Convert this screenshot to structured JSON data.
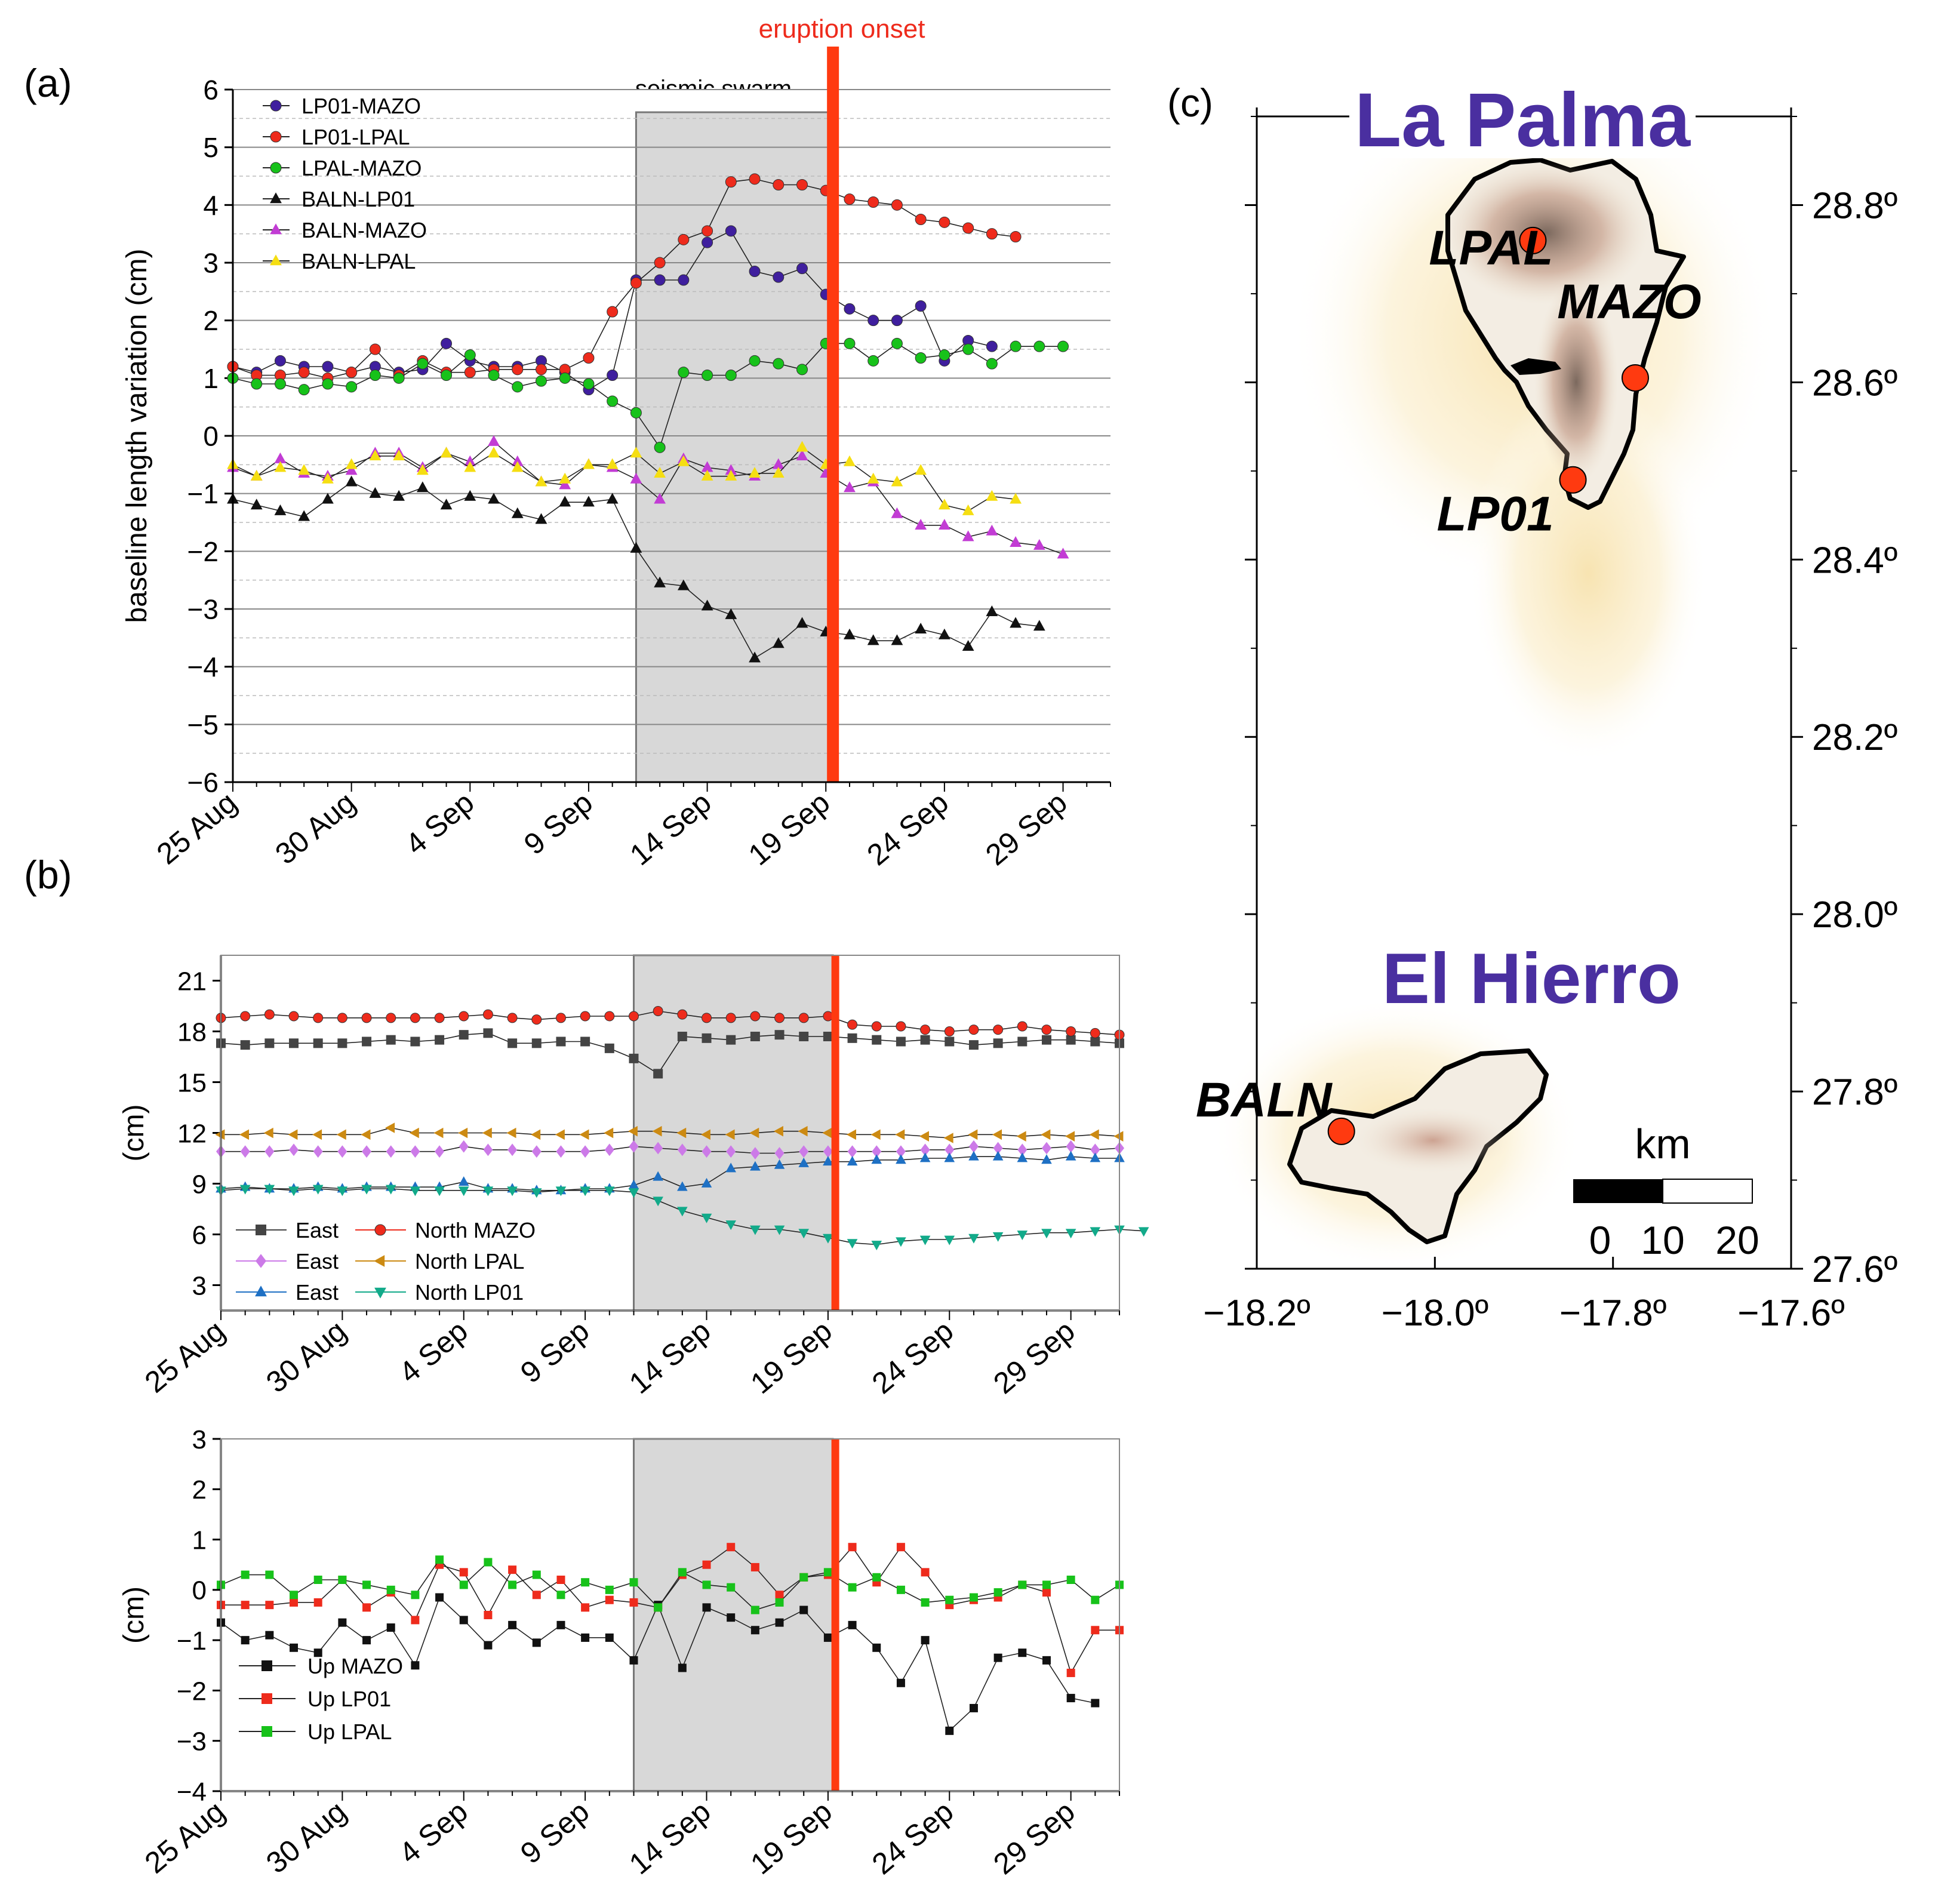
{
  "colors": {
    "purple": "#3f1f9e",
    "red": "#ee2b1c",
    "green": "#17c21a",
    "black": "#111111",
    "magenta": "#c23cd4",
    "yellow": "#f5de12",
    "gray": "#444444",
    "violet": "#cc7ae8",
    "blue": "#1e70c4",
    "orange": "#cc8a12",
    "teal": "#12aa8a",
    "eruption": "#ff3a10",
    "swarm": "#d8d8d8",
    "map_title": "#4a2fa0"
  },
  "panel_labels": {
    "a": "(a)",
    "b": "(b)",
    "c": "(c)"
  },
  "annotations": {
    "eruption_onset": "eruption onset",
    "seismic_swarm": "seismic swarm"
  },
  "chart_data": [
    {
      "id": "a",
      "type": "line",
      "ylabel": "baseline length variation (cm)",
      "ylim": [
        -6,
        6
      ],
      "yticks": [
        "6",
        "5",
        "4",
        "3",
        "2",
        "1",
        "0",
        "−1",
        "−2",
        "−3",
        "−4",
        "−5",
        "−6"
      ],
      "xlim": [
        0,
        37
      ],
      "xtick_labels": [
        "25 Aug",
        "30 Aug",
        "4 Sep",
        "9 Sep",
        "14 Sep",
        "19 Sep",
        "24 Sep",
        "29 Sep"
      ],
      "xtick_days": [
        0,
        5,
        10,
        15,
        20,
        25,
        30,
        35
      ],
      "swarm_days": [
        17,
        25.2
      ],
      "eruption_day": 25.3,
      "series": [
        {
          "name": "LP01-MAZO",
          "color": "#3f1f9e",
          "marker": "circle",
          "values": [
            1.2,
            1.1,
            1.3,
            1.2,
            1.2,
            1.1,
            1.2,
            1.1,
            1.15,
            1.6,
            1.3,
            1.2,
            1.2,
            1.3,
            1.1,
            0.8,
            1.05,
            2.7,
            2.7,
            2.7,
            3.35,
            3.55,
            2.85,
            2.75,
            2.9,
            2.45,
            2.2,
            2.0,
            2.0,
            2.25,
            1.3,
            1.65,
            1.55
          ]
        },
        {
          "name": "LP01-LPAL",
          "color": "#ee2b1c",
          "marker": "circle",
          "values": [
            1.2,
            1.05,
            1.05,
            1.1,
            1.0,
            1.1,
            1.5,
            1.05,
            1.3,
            1.1,
            1.1,
            1.15,
            1.15,
            1.15,
            1.15,
            1.35,
            2.15,
            2.65,
            3.0,
            3.4,
            3.55,
            4.4,
            4.45,
            4.35,
            4.35,
            4.25,
            4.1,
            4.05,
            4.0,
            3.75,
            3.7,
            3.6,
            3.5,
            3.45
          ]
        },
        {
          "name": "LPAL-MAZO",
          "color": "#17c21a",
          "marker": "circle",
          "values": [
            1.0,
            0.9,
            0.9,
            0.8,
            0.9,
            0.85,
            1.05,
            1.0,
            1.25,
            1.05,
            1.4,
            1.05,
            0.85,
            0.95,
            1.0,
            0.9,
            0.6,
            0.4,
            -0.2,
            1.1,
            1.05,
            1.05,
            1.3,
            1.25,
            1.15,
            1.6,
            1.6,
            1.3,
            1.6,
            1.35,
            1.4,
            1.5,
            1.25,
            1.55,
            1.55,
            1.55
          ]
        },
        {
          "name": "BALN-LP01",
          "color": "#111111",
          "marker": "triangle",
          "values": [
            -1.1,
            -1.2,
            -1.3,
            -1.4,
            -1.1,
            -0.8,
            -1.0,
            -1.05,
            -0.9,
            -1.2,
            -1.05,
            -1.1,
            -1.35,
            -1.45,
            -1.15,
            -1.15,
            -1.1,
            -1.95,
            -2.55,
            -2.6,
            -2.95,
            -3.1,
            -3.85,
            -3.6,
            -3.25,
            -3.4,
            -3.45,
            -3.55,
            -3.55,
            -3.35,
            -3.45,
            -3.65,
            -3.05,
            -3.25,
            -3.3
          ]
        },
        {
          "name": "BALN-MAZO",
          "color": "#c23cd4",
          "marker": "triangle",
          "values": [
            -0.55,
            -0.7,
            -0.4,
            -0.65,
            -0.7,
            -0.6,
            -0.3,
            -0.3,
            -0.55,
            -0.3,
            -0.45,
            -0.1,
            -0.45,
            -0.8,
            -0.85,
            -0.5,
            -0.55,
            -0.75,
            -1.1,
            -0.4,
            -0.55,
            -0.6,
            -0.7,
            -0.5,
            -0.35,
            -0.65,
            -0.9,
            -0.8,
            -1.35,
            -1.55,
            -1.55,
            -1.75,
            -1.65,
            -1.85,
            -1.9,
            -2.05
          ]
        },
        {
          "name": "BALN-LPAL",
          "color": "#f5de12",
          "marker": "triangle",
          "values": [
            -0.5,
            -0.7,
            -0.55,
            -0.6,
            -0.75,
            -0.5,
            -0.35,
            -0.35,
            -0.6,
            -0.3,
            -0.55,
            -0.3,
            -0.55,
            -0.8,
            -0.75,
            -0.5,
            -0.5,
            -0.3,
            -0.65,
            -0.45,
            -0.7,
            -0.7,
            -0.65,
            -0.65,
            -0.2,
            -0.5,
            -0.45,
            -0.75,
            -0.8,
            -0.6,
            -1.2,
            -1.3,
            -1.05,
            -1.1
          ]
        }
      ]
    },
    {
      "id": "b1",
      "type": "line",
      "ylabel": "(cm)",
      "ylim": [
        1.5,
        22.5
      ],
      "yticks": [
        "21",
        "18",
        "15",
        "12",
        "9",
        "6",
        "3"
      ],
      "ytick_values": [
        21,
        18,
        15,
        12,
        9,
        6,
        3
      ],
      "xlim": [
        0,
        37
      ],
      "xtick_labels": [
        "25 Aug",
        "30 Aug",
        "4 Sep",
        "9 Sep",
        "14 Sep",
        "19 Sep",
        "24 Sep",
        "29 Sep"
      ],
      "xtick_days": [
        0,
        5,
        10,
        15,
        20,
        25,
        30,
        35
      ],
      "swarm_days": [
        17,
        25.2
      ],
      "eruption_day": 25.3,
      "legend_pairs": [
        [
          "East",
          "North MAZO"
        ],
        [
          "East",
          "North LPAL"
        ],
        [
          "East",
          "North LP01"
        ]
      ],
      "series": [
        {
          "name": "East MAZO",
          "color": "#444444",
          "marker": "square",
          "values": [
            17.3,
            17.2,
            17.3,
            17.3,
            17.3,
            17.3,
            17.4,
            17.5,
            17.4,
            17.5,
            17.8,
            17.9,
            17.3,
            17.3,
            17.4,
            17.4,
            17.0,
            16.4,
            15.5,
            17.7,
            17.6,
            17.5,
            17.7,
            17.8,
            17.7,
            17.7,
            17.6,
            17.5,
            17.4,
            17.5,
            17.4,
            17.2,
            17.3,
            17.4,
            17.5,
            17.5,
            17.4,
            17.3
          ]
        },
        {
          "name": "North MAZO",
          "color": "#ee2b1c",
          "marker": "circle",
          "values": [
            18.8,
            18.9,
            19.0,
            18.9,
            18.8,
            18.8,
            18.8,
            18.8,
            18.8,
            18.8,
            18.9,
            19.0,
            18.8,
            18.7,
            18.8,
            18.9,
            18.9,
            18.9,
            19.2,
            19.0,
            18.8,
            18.8,
            18.9,
            18.8,
            18.8,
            18.9,
            18.4,
            18.3,
            18.3,
            18.1,
            18.0,
            18.1,
            18.1,
            18.3,
            18.1,
            18.0,
            17.9,
            17.8
          ]
        },
        {
          "name": "East LPAL",
          "color": "#cc7ae8",
          "marker": "diamond",
          "values": [
            10.9,
            10.9,
            10.9,
            11.0,
            10.9,
            10.9,
            10.9,
            10.9,
            10.9,
            10.9,
            11.2,
            11.0,
            11.0,
            10.9,
            10.9,
            10.9,
            11.0,
            11.2,
            11.1,
            11.0,
            10.9,
            10.9,
            10.8,
            10.8,
            10.9,
            10.9,
            10.9,
            10.9,
            10.9,
            11.0,
            11.0,
            11.2,
            11.1,
            11.0,
            11.1,
            11.2,
            11.0,
            11.1
          ]
        },
        {
          "name": "North LPAL",
          "color": "#cc8a12",
          "marker": "triangle-left",
          "values": [
            11.9,
            11.9,
            12.0,
            11.9,
            11.9,
            11.9,
            11.9,
            12.3,
            12.0,
            12.0,
            12.0,
            12.0,
            12.0,
            11.9,
            11.9,
            11.9,
            12.0,
            12.1,
            12.1,
            12.0,
            11.9,
            11.9,
            12.0,
            12.1,
            12.1,
            12.0,
            11.9,
            11.9,
            11.9,
            11.8,
            11.7,
            11.9,
            11.9,
            11.8,
            11.9,
            11.8,
            11.9,
            11.8
          ]
        },
        {
          "name": "East LP01",
          "color": "#1e70c4",
          "marker": "triangle",
          "values": [
            8.7,
            8.8,
            8.7,
            8.7,
            8.8,
            8.7,
            8.8,
            8.8,
            8.8,
            8.8,
            9.1,
            8.7,
            8.7,
            8.6,
            8.6,
            8.7,
            8.7,
            8.9,
            9.4,
            8.8,
            9.0,
            9.9,
            10.0,
            10.1,
            10.2,
            10.3,
            10.3,
            10.4,
            10.4,
            10.5,
            10.5,
            10.6,
            10.6,
            10.5,
            10.4,
            10.6,
            10.5,
            10.5
          ]
        },
        {
          "name": "North LP01",
          "color": "#12aa8a",
          "marker": "triangle-down",
          "values": [
            8.6,
            8.7,
            8.7,
            8.6,
            8.7,
            8.6,
            8.7,
            8.7,
            8.6,
            8.6,
            8.6,
            8.6,
            8.6,
            8.5,
            8.6,
            8.6,
            8.6,
            8.5,
            8.0,
            7.4,
            7.0,
            6.6,
            6.3,
            6.3,
            6.1,
            5.8,
            5.5,
            5.4,
            5.6,
            5.7,
            5.7,
            5.8,
            5.9,
            6.0,
            6.1,
            6.1,
            6.2,
            6.3,
            6.2
          ]
        }
      ]
    },
    {
      "id": "b2",
      "type": "line",
      "ylabel": "(cm)",
      "ylim": [
        -4,
        3
      ],
      "yticks": [
        "3",
        "2",
        "1",
        "0",
        "−1",
        "−2",
        "−3",
        "−4"
      ],
      "ytick_values": [
        3,
        2,
        1,
        0,
        -1,
        -2,
        -3,
        -4
      ],
      "xlim": [
        0,
        37
      ],
      "xtick_labels": [
        "25 Aug",
        "30 Aug",
        "4 Sep",
        "9 Sep",
        "14 Sep",
        "19 Sep",
        "24 Sep",
        "29 Sep"
      ],
      "xtick_days": [
        0,
        5,
        10,
        15,
        20,
        25,
        30,
        35
      ],
      "swarm_days": [
        17,
        25.2
      ],
      "eruption_day": 25.3,
      "series": [
        {
          "name": "Up MAZO",
          "color": "#111111",
          "marker": "square",
          "values": [
            -0.65,
            -1.0,
            -0.9,
            -1.15,
            -1.25,
            -0.65,
            -1.0,
            -0.75,
            -1.5,
            -0.15,
            -0.6,
            -1.1,
            -0.7,
            -1.05,
            -0.7,
            -0.95,
            -0.95,
            -1.4,
            -0.3,
            -1.55,
            -0.35,
            -0.55,
            -0.8,
            -0.65,
            -0.4,
            -0.95,
            -0.7,
            -1.15,
            -1.85,
            -1.0,
            -2.8,
            -2.35,
            -1.35,
            -1.25,
            -1.4,
            -2.15,
            -2.25
          ]
        },
        {
          "name": "Up LP01",
          "color": "#ee2b1c",
          "marker": "square",
          "values": [
            -0.3,
            -0.3,
            -0.3,
            -0.25,
            -0.25,
            0.2,
            -0.35,
            -0.05,
            -0.6,
            0.5,
            0.35,
            -0.5,
            0.4,
            -0.1,
            0.2,
            -0.35,
            -0.2,
            -0.25,
            -0.35,
            0.3,
            0.5,
            0.85,
            0.45,
            -0.1,
            0.25,
            0.3,
            0.85,
            0.15,
            0.85,
            0.35,
            -0.3,
            -0.2,
            -0.15,
            0.1,
            -0.05,
            -1.65,
            -0.8,
            -0.8
          ]
        },
        {
          "name": "Up LPAL",
          "color": "#17c21a",
          "marker": "square",
          "values": [
            0.1,
            0.3,
            0.3,
            -0.1,
            0.2,
            0.2,
            0.1,
            0.0,
            -0.1,
            0.6,
            0.1,
            0.55,
            0.1,
            0.3,
            -0.1,
            0.15,
            0.0,
            0.15,
            -0.35,
            0.35,
            0.1,
            0.05,
            -0.4,
            -0.25,
            0.25,
            0.35,
            0.05,
            0.25,
            0.0,
            -0.25,
            -0.2,
            -0.15,
            -0.05,
            0.1,
            0.1,
            0.2,
            -0.2,
            0.1
          ]
        }
      ]
    }
  ],
  "map": {
    "title_lapalma": "La Palma",
    "title_elhierro": "El Hierro",
    "stations": [
      {
        "name": "LPAL",
        "lon": -17.89,
        "lat": 28.76
      },
      {
        "name": "MAZO",
        "lon": -17.775,
        "lat": 28.605
      },
      {
        "name": "LP01",
        "lon": -17.845,
        "lat": 28.49
      },
      {
        "name": "BALN",
        "lon": -18.105,
        "lat": 27.755
      }
    ],
    "lon_ticks": [
      "−18.2º",
      "−18.0º",
      "−17.8º",
      "−17.6º"
    ],
    "lat_ticks": [
      "28.8º",
      "28.6º",
      "28.4º",
      "28.2º",
      "28.0º",
      "27.8º",
      "27.6º"
    ],
    "lon_range": [
      -18.2,
      -17.6
    ],
    "lat_range": [
      27.6,
      28.9
    ],
    "scale_label": "km",
    "scale_ticks": [
      "0",
      "10",
      "20"
    ]
  }
}
